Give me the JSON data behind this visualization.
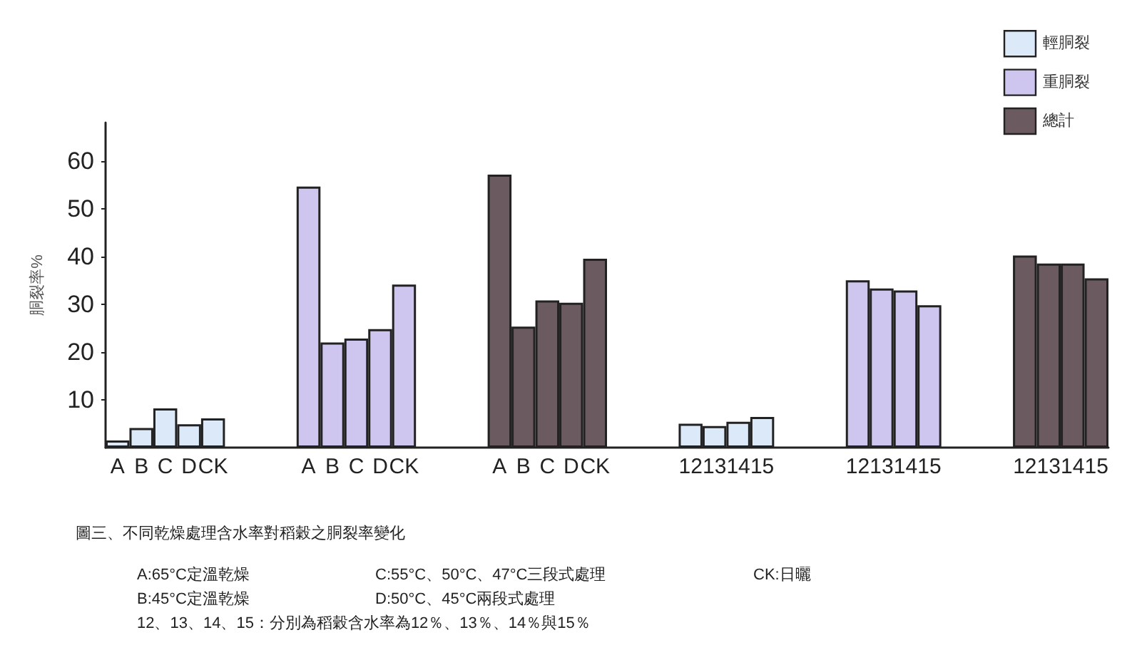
{
  "chart_data": {
    "type": "bar",
    "title": "圖三、不同乾燥處理含水率對稻穀之胴裂率變化",
    "ylabel": "胴裂率%",
    "categories": [
      "A",
      "B",
      "C",
      "D",
      "CK",
      null,
      null,
      null,
      "A",
      "B",
      "C",
      "D",
      "CK",
      null,
      null,
      null,
      "A",
      "B",
      "C",
      "D",
      "CK",
      null,
      null,
      null,
      "12",
      "13",
      "14",
      "15",
      null,
      null,
      null,
      "12",
      "13",
      "14",
      "15",
      null,
      null,
      null,
      "12",
      "13",
      "14",
      "15"
    ],
    "series": [
      {
        "name": "輕胴裂",
        "color": "#dce9f8",
        "values": [
          1.5,
          4.1,
          8.2,
          4.9,
          6.1,
          null,
          null,
          null,
          null,
          null,
          null,
          null,
          null,
          null,
          null,
          null,
          null,
          null,
          null,
          null,
          null,
          null,
          null,
          null,
          5.0,
          4.5,
          5.4,
          6.4,
          null,
          null,
          null,
          null,
          null,
          null,
          null,
          null,
          null,
          null,
          null,
          null,
          null,
          null
        ]
      },
      {
        "name": "重胴裂",
        "color": "#cfc6ef",
        "values": [
          null,
          null,
          null,
          null,
          null,
          null,
          null,
          null,
          54.6,
          22.0,
          22.8,
          24.8,
          34.1,
          null,
          null,
          null,
          null,
          null,
          null,
          null,
          null,
          null,
          null,
          null,
          null,
          null,
          null,
          null,
          null,
          null,
          null,
          35.0,
          33.3,
          32.9,
          29.8,
          null,
          null,
          null,
          null,
          null,
          null,
          null
        ]
      },
      {
        "name": "總計",
        "color": "#6b5a60",
        "values": [
          null,
          null,
          null,
          null,
          null,
          null,
          null,
          null,
          null,
          null,
          null,
          null,
          null,
          null,
          null,
          null,
          57.1,
          25.3,
          30.8,
          30.3,
          39.5,
          null,
          null,
          null,
          null,
          null,
          null,
          null,
          null,
          null,
          null,
          null,
          null,
          null,
          null,
          null,
          null,
          null,
          40.2,
          38.5,
          38.5,
          35.4
        ]
      }
    ],
    "stacked": true,
    "ylim": [
      0,
      68
    ],
    "yticks": [
      10,
      20,
      30,
      40,
      50,
      60
    ],
    "grid": false,
    "legend": "top right",
    "annotations": [
      "A:65°C定溫乾燥",
      "C:55°C、50°C、47°C三段式處理",
      "CK:日曬",
      "B:45°C定溫乾燥",
      "D:50°C、45°C兩段式處理",
      "12、13、14、15：分別為稻穀含水率為12％、13％、14％與15％"
    ]
  }
}
